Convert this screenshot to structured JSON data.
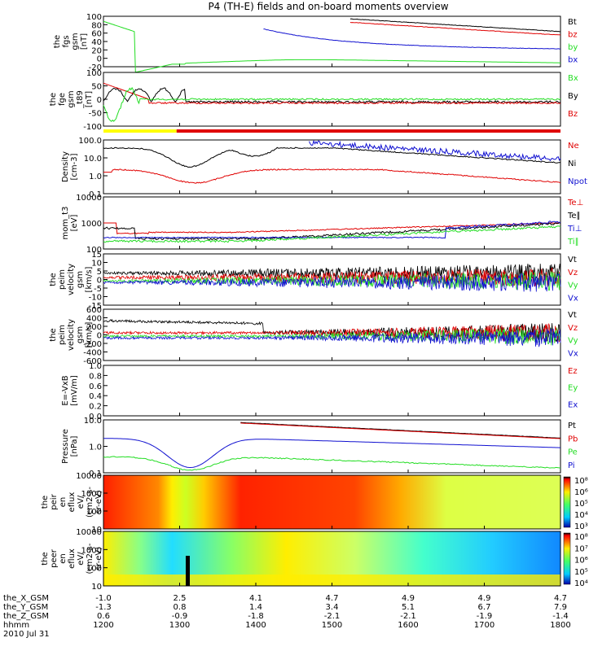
{
  "title": "P4 (TH-E) fields and on-board moments overview",
  "colors": {
    "black": "#000000",
    "red": "#e00000",
    "green": "#22dd22",
    "blue": "#1010d0",
    "yellow": "#ffff00"
  },
  "chart_data": [
    {
      "id": "fgs",
      "type": "line",
      "ylabel": [
        "the",
        "fgs",
        "gsm",
        "[nT]"
      ],
      "ylim": [
        -20,
        100
      ],
      "yticks": [
        "100",
        "80",
        "60",
        "40",
        "20",
        "0",
        "-20"
      ],
      "series": [
        {
          "name": "Bt",
          "color": "black"
        },
        {
          "name": "bz",
          "color": "red"
        },
        {
          "name": "by",
          "color": "green"
        },
        {
          "name": "bx",
          "color": "blue"
        }
      ]
    },
    {
      "id": "fge",
      "type": "line",
      "ylabel": [
        "the",
        "fge",
        "gsm",
        "_t89",
        "[nT]"
      ],
      "ylim": [
        -100,
        100
      ],
      "yticks": [
        "100",
        "50",
        "0",
        "-50",
        "-100"
      ],
      "series": [
        {
          "name": "Bx",
          "color": "green"
        },
        {
          "name": "By",
          "color": "black"
        },
        {
          "name": "Bz",
          "color": "red"
        }
      ]
    },
    {
      "id": "density",
      "type": "line",
      "scale": "log",
      "ylabel": [
        "Density",
        "[cm-3]"
      ],
      "yticks": [
        "100.0",
        "10.0",
        "1.0",
        "0.1"
      ],
      "series": [
        {
          "name": "Ne",
          "color": "red"
        },
        {
          "name": "Ni",
          "color": "black"
        },
        {
          "name": "Npot",
          "color": "blue"
        }
      ]
    },
    {
      "id": "temp",
      "type": "line",
      "scale": "log",
      "ylabel": [
        "mom_t3",
        "[eV]"
      ],
      "yticks": [
        "10000",
        "1000",
        "100"
      ],
      "series": [
        {
          "name": "Te⊥",
          "color": "red"
        },
        {
          "name": "Te∥",
          "color": "black"
        },
        {
          "name": "Ti⊥",
          "color": "blue"
        },
        {
          "name": "Ti∥",
          "color": "green"
        }
      ]
    },
    {
      "id": "peimvel",
      "type": "line",
      "ylabel": [
        "the",
        "peim",
        "velocity",
        "gsm",
        "[km/s]"
      ],
      "ylim": [
        -15,
        15
      ],
      "yticks": [
        "15",
        "10",
        "5",
        "0",
        "-5",
        "-10",
        "-15"
      ],
      "series": [
        {
          "name": "Vt",
          "color": "black"
        },
        {
          "name": "Vz",
          "color": "red"
        },
        {
          "name": "Vy",
          "color": "green"
        },
        {
          "name": "Vx",
          "color": "blue"
        }
      ]
    },
    {
      "id": "peirvel",
      "type": "line",
      "ylabel": [
        "the",
        "peim",
        "velocity",
        "gsm",
        "[km/s]"
      ],
      "ylim": [
        -600,
        600
      ],
      "yticks": [
        "600",
        "400",
        "200",
        "0",
        "-200",
        "-400",
        "-600"
      ],
      "series": [
        {
          "name": "Vt",
          "color": "black"
        },
        {
          "name": "Vz",
          "color": "red"
        },
        {
          "name": "Vy",
          "color": "green"
        },
        {
          "name": "Vx",
          "color": "blue"
        }
      ]
    },
    {
      "id": "efield",
      "type": "line",
      "ylabel": [
        "E=-VxB",
        "[mV/m]"
      ],
      "ylim": [
        0,
        1
      ],
      "yticks": [
        "1.0",
        "0.8",
        "0.6",
        "0.4",
        "0.2",
        "0.0"
      ],
      "series": [
        {
          "name": "Ez",
          "color": "red"
        },
        {
          "name": "Ey",
          "color": "green"
        },
        {
          "name": "Ex",
          "color": "blue"
        }
      ]
    },
    {
      "id": "pressure",
      "type": "line",
      "scale": "log",
      "ylabel": [
        "Pressure",
        "[nPa]"
      ],
      "yticks": [
        "10.0",
        "1.0",
        "0.1"
      ],
      "series": [
        {
          "name": "Pt",
          "color": "black"
        },
        {
          "name": "Pb",
          "color": "red"
        },
        {
          "name": "Pe",
          "color": "green"
        },
        {
          "name": "Pi",
          "color": "blue"
        }
      ]
    },
    {
      "id": "peir_spec",
      "type": "heatmap",
      "ylabel": [
        "the",
        "peir",
        "en",
        "eflux",
        "eV/",
        "(cm2-s-",
        "sr-eV)"
      ],
      "yticks": [
        "10000",
        "1000",
        "100",
        "10"
      ],
      "colorbar": [
        "10⁸",
        "10⁶",
        "10⁵",
        "10⁴",
        "10³"
      ]
    },
    {
      "id": "peer_spec",
      "type": "heatmap",
      "ylabel": [
        "the",
        "peer",
        "en",
        "eflux",
        "eV/",
        "(cm2-s-",
        "sr-eV)"
      ],
      "yticks": [
        "10000",
        "1000",
        "100",
        "10"
      ],
      "colorbar": [
        "10⁸",
        "10⁷",
        "10⁶",
        "10⁵",
        "10⁴"
      ]
    }
  ],
  "x_axis": {
    "rows": [
      {
        "label": "the_X_GSM",
        "values": [
          "-1.0",
          "2.5",
          "4.1",
          "4.7",
          "4.9",
          "4.9",
          "4.7"
        ]
      },
      {
        "label": "the_Y_GSM",
        "values": [
          "-1.3",
          "0.8",
          "1.4",
          "3.4",
          "5.1",
          "6.7",
          "7.9"
        ]
      },
      {
        "label": "the_Z_GSM",
        "values": [
          "0.6",
          "-0.9",
          "-1.8",
          "-2.1",
          "-2.1",
          "-1.9",
          "-1.4"
        ]
      },
      {
        "label": "hhmm",
        "values": [
          "1200",
          "1300",
          "1400",
          "1500",
          "1600",
          "1700",
          "1800"
        ]
      }
    ],
    "date": "2010 Jul 31"
  }
}
